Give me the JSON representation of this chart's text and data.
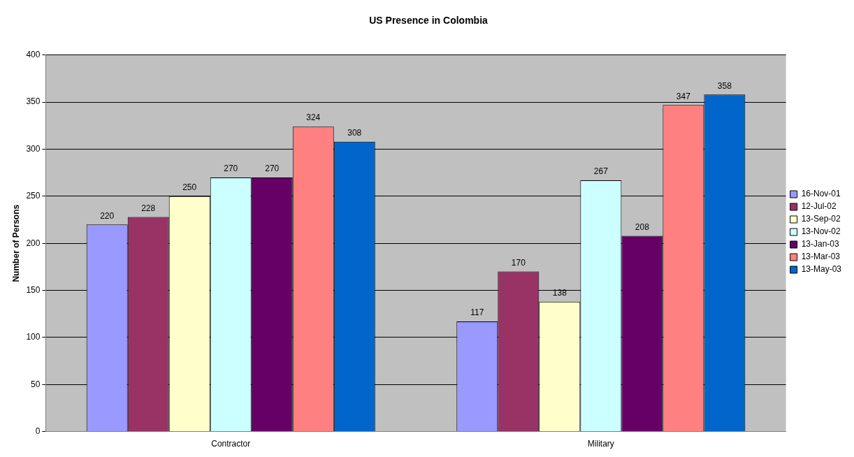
{
  "chart_data": {
    "type": "bar",
    "title": "US Presence in Colombia",
    "ylabel": "Number of Persons",
    "categories": [
      "Contractor",
      "Military"
    ],
    "series": [
      {
        "name": "16-Nov-01",
        "color": "#9999ff",
        "values": [
          220,
          117
        ]
      },
      {
        "name": "12-Jul-02",
        "color": "#993366",
        "values": [
          228,
          170
        ]
      },
      {
        "name": "13-Sep-02",
        "color": "#ffffcc",
        "values": [
          250,
          138
        ]
      },
      {
        "name": "13-Nov-02",
        "color": "#ccffff",
        "values": [
          270,
          267
        ]
      },
      {
        "name": "13-Jan-03",
        "color": "#660066",
        "values": [
          270,
          208
        ]
      },
      {
        "name": "13-Mar-03",
        "color": "#ff8080",
        "values": [
          324,
          347
        ]
      },
      {
        "name": "13-May-03",
        "color": "#0066cc",
        "values": [
          308,
          358
        ]
      }
    ],
    "ylim": [
      0,
      400
    ],
    "yticks": [
      0,
      50,
      100,
      150,
      200,
      250,
      300,
      350,
      400
    ],
    "grid": "y",
    "legend": "right",
    "data_labels": true
  }
}
